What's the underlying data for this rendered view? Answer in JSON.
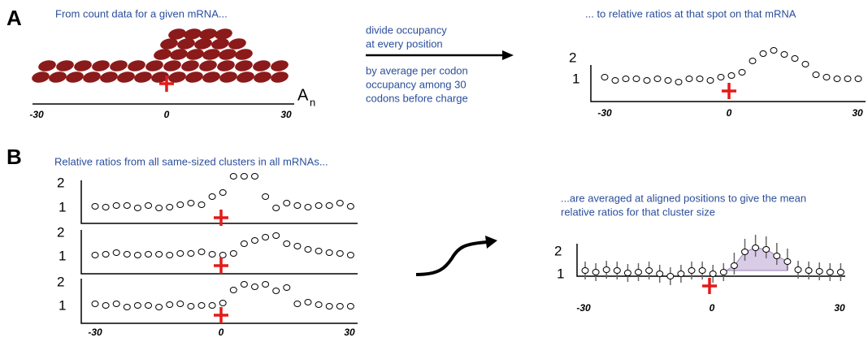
{
  "panel_a": {
    "label": "A",
    "caption": "From count data for a given mRNA...",
    "count_plot": {
      "x_labels": [
        "-30",
        "0",
        "30"
      ],
      "end_label": "A",
      "end_subscript": "n"
    },
    "arrow_text": {
      "above": [
        "divide occupancy",
        "at every position"
      ],
      "below": [
        "by average per codon",
        "occupancy among 30",
        "codons before charge"
      ]
    },
    "ratio_plot": {
      "caption": "... to relative ratios at that spot on that mRNA",
      "y_labels": [
        "2",
        "1"
      ],
      "x_labels": [
        "-30",
        "0",
        "30"
      ]
    }
  },
  "panel_b": {
    "label": "B",
    "caption": "Relative ratios from all same-sized clusters in all mRNAs...",
    "cluster_plots": [
      {
        "y_labels": [
          "2",
          "1"
        ]
      },
      {
        "y_labels": [
          "2",
          "1"
        ]
      },
      {
        "y_labels": [
          "2",
          "1"
        ]
      }
    ],
    "x_labels": [
      "-30",
      "0",
      "30"
    ],
    "mean_plot": {
      "caption": [
        "...are averaged at aligned positions to give the mean",
        "relative ratios for that cluster size"
      ],
      "y_labels": [
        "2",
        "1"
      ],
      "x_labels": [
        "-30",
        "0",
        "30"
      ]
    }
  }
}
